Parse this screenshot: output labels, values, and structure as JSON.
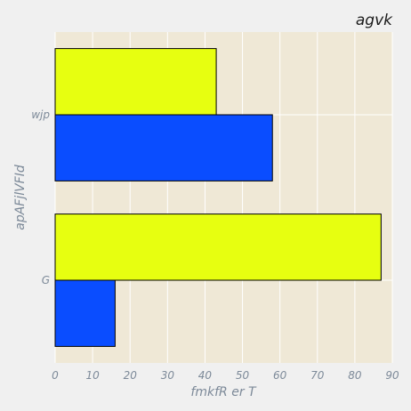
{
  "chart_data": {
    "type": "bar",
    "orientation": "horizontal",
    "title": "agvk",
    "xlabel": "fmkfR er T",
    "ylabel": "apAFjlVFId",
    "categories": [
      "G",
      "wjp"
    ],
    "series": [
      {
        "color": "#0a4dff",
        "values": [
          16,
          58
        ]
      },
      {
        "color": "#e7ff10",
        "values": [
          87,
          43
        ]
      }
    ],
    "xlim": [
      0,
      90
    ],
    "xticks": [
      0,
      10,
      20,
      30,
      40,
      50,
      60,
      70,
      80,
      90
    ],
    "grid": true,
    "legend": "none",
    "colors": {
      "background": "#f0f0f0",
      "plot_background": "#efe8d6",
      "grid": "#ffffff",
      "text": "#7d8a99"
    }
  }
}
